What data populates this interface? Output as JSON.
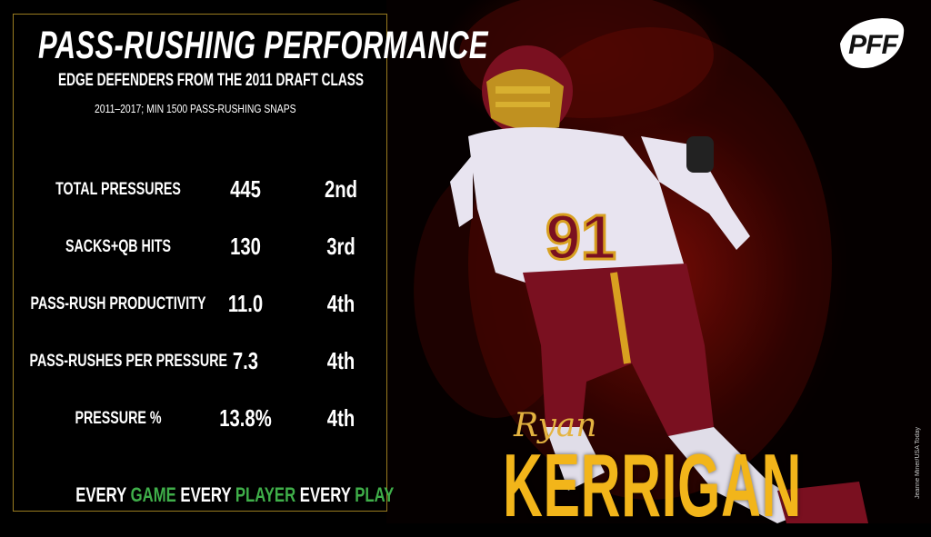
{
  "header": {
    "title": "PASS-RUSHING PERFORMANCE",
    "subtitle": "EDGE DEFENDERS FROM THE 2011 DRAFT CLASS",
    "note": "2011–2017; MIN 1500 PASS-RUSHING SNAPS"
  },
  "stats": [
    {
      "label": "TOTAL PRESSURES",
      "value": "445",
      "rank": "2nd"
    },
    {
      "label": "SACKS+QB HITS",
      "value": "130",
      "rank": "3rd"
    },
    {
      "label": "PASS-RUSH PRODUCTIVITY",
      "value": "11.0",
      "rank": "4th"
    },
    {
      "label": "PASS-RUSHES PER PRESSURE",
      "value": "7.3",
      "rank": "4th"
    },
    {
      "label": "PRESSURE %",
      "value": "13.8%",
      "rank": "4th"
    }
  ],
  "tagline": {
    "w1": "EVERY",
    "w2": "GAME",
    "w3": "EVERY",
    "w4": "PLAYER",
    "w5": "EVERY",
    "w6": "PLAY"
  },
  "player": {
    "first_name": "Ryan",
    "last_name": "KERRIGAN",
    "jersey_number": "91"
  },
  "brand": {
    "logo_text": "PFF",
    "photo_credit": "Jeanne Miner/USA Today"
  },
  "colors": {
    "gold": "#f2b51a",
    "green": "#3fae49",
    "border": "#9a7c20",
    "burgundy": "#7a1020"
  }
}
